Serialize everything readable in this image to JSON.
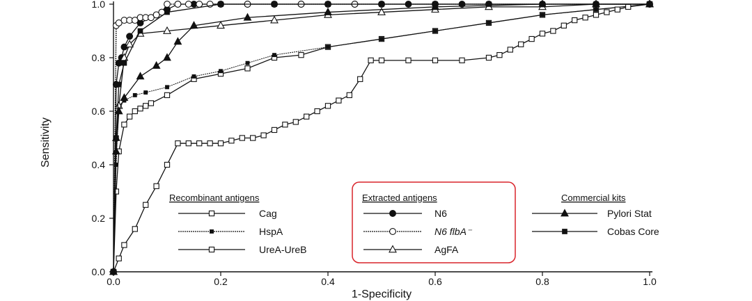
{
  "chart_data": {
    "type": "line",
    "title": "",
    "xlabel": "1-Specificity",
    "ylabel": "Sensitivity",
    "xlim": [
      0,
      1
    ],
    "ylim": [
      0,
      1
    ],
    "xticks": [
      "0.0",
      "0.2",
      "0.4",
      "0.6",
      "0.8",
      "1.0"
    ],
    "yticks": [
      "0.0",
      "0.2",
      "0.4",
      "0.6",
      "0.8",
      "1.0"
    ],
    "legend": {
      "groups": [
        {
          "title": "Recombinant antigens",
          "entries": [
            "Cag",
            "HspA",
            "UreA-UreB"
          ]
        },
        {
          "title": "Extracted antigens",
          "entries": [
            "N6",
            "N6 flbA⁻",
            "AgFA"
          ],
          "highlighted": true
        },
        {
          "title": "Commercial kits",
          "entries": [
            "Pylori Stat",
            "Cobas Core"
          ]
        }
      ]
    },
    "series": [
      {
        "name": "Cag",
        "marker": "open-square",
        "x": [
          0,
          0.005,
          0.01,
          0.02,
          0.03,
          0.04,
          0.05,
          0.06,
          0.07,
          0.1,
          0.15,
          0.2,
          0.25,
          0.3,
          0.35,
          0.4,
          0.5,
          0.6,
          0.7,
          0.8,
          0.9,
          1.0
        ],
        "y": [
          0,
          0.3,
          0.45,
          0.55,
          0.58,
          0.6,
          0.61,
          0.62,
          0.63,
          0.66,
          0.72,
          0.74,
          0.76,
          0.8,
          0.81,
          0.84,
          0.87,
          0.9,
          0.93,
          0.96,
          0.98,
          1.0
        ]
      },
      {
        "name": "HspA",
        "marker": "small-filled-square",
        "x": [
          0,
          0.005,
          0.01,
          0.02,
          0.04,
          0.06,
          0.1,
          0.15,
          0.2,
          0.25,
          0.3,
          0.4,
          0.5,
          0.6,
          0.7,
          0.8,
          0.9,
          1.0
        ],
        "y": [
          0,
          0.4,
          0.62,
          0.64,
          0.66,
          0.67,
          0.69,
          0.73,
          0.75,
          0.78,
          0.81,
          0.84,
          0.87,
          0.9,
          0.93,
          0.96,
          0.98,
          1.0
        ]
      },
      {
        "name": "UreA-UreB",
        "marker": "open-square",
        "x": [
          0,
          0.01,
          0.02,
          0.04,
          0.06,
          0.08,
          0.1,
          0.12,
          0.14,
          0.16,
          0.18,
          0.2,
          0.22,
          0.24,
          0.26,
          0.28,
          0.3,
          0.32,
          0.34,
          0.36,
          0.38,
          0.4,
          0.42,
          0.44,
          0.46,
          0.48,
          0.5,
          0.55,
          0.6,
          0.65,
          0.7,
          0.72,
          0.74,
          0.76,
          0.78,
          0.8,
          0.82,
          0.84,
          0.86,
          0.88,
          0.9,
          0.92,
          0.94,
          0.96,
          1.0
        ],
        "y": [
          0,
          0.05,
          0.1,
          0.16,
          0.25,
          0.32,
          0.4,
          0.48,
          0.48,
          0.48,
          0.48,
          0.48,
          0.49,
          0.5,
          0.5,
          0.51,
          0.53,
          0.55,
          0.56,
          0.58,
          0.6,
          0.62,
          0.64,
          0.66,
          0.72,
          0.79,
          0.79,
          0.79,
          0.79,
          0.79,
          0.8,
          0.81,
          0.83,
          0.85,
          0.87,
          0.89,
          0.9,
          0.92,
          0.94,
          0.95,
          0.96,
          0.97,
          0.98,
          0.99,
          1.0
        ]
      },
      {
        "name": "N6",
        "marker": "filled-circle",
        "x": [
          0,
          0.005,
          0.01,
          0.015,
          0.02,
          0.03,
          0.05,
          0.08,
          0.1,
          0.12,
          0.15,
          0.2,
          0.25,
          0.3,
          0.35,
          0.4,
          0.45,
          0.5,
          0.55,
          0.6,
          0.65,
          0.7,
          0.8,
          0.9,
          1.0
        ],
        "y": [
          0,
          0.7,
          0.78,
          0.8,
          0.84,
          0.88,
          0.93,
          0.96,
          0.98,
          1.0,
          1.0,
          1.0,
          1.0,
          1.0,
          1.0,
          1.0,
          1.0,
          1.0,
          1.0,
          1.0,
          1.0,
          1.0,
          1.0,
          1.0,
          1.0
        ]
      },
      {
        "name": "N6 flbA⁻",
        "marker": "open-circle",
        "x": [
          0,
          0.005,
          0.01,
          0.02,
          0.03,
          0.04,
          0.05,
          0.06,
          0.07,
          0.08,
          0.09,
          0.1,
          0.12,
          0.14,
          0.16,
          0.18,
          0.2,
          0.25,
          0.3,
          0.35,
          0.4,
          0.45,
          0.5,
          0.6,
          0.7,
          0.8,
          0.9,
          1.0
        ],
        "y": [
          0,
          0.92,
          0.93,
          0.94,
          0.94,
          0.94,
          0.95,
          0.95,
          0.95,
          0.96,
          0.97,
          1.0,
          1.0,
          1.0,
          1.0,
          1.0,
          1.0,
          1.0,
          1.0,
          1.0,
          1.0,
          1.0,
          1.0,
          1.0,
          1.0,
          1.0,
          1.0,
          1.0
        ]
      },
      {
        "name": "AgFA",
        "marker": "open-triangle",
        "x": [
          0,
          0.005,
          0.01,
          0.02,
          0.03,
          0.05,
          0.1,
          0.2,
          0.3,
          0.4,
          0.5,
          0.6,
          0.7,
          0.8,
          0.9,
          1.0
        ],
        "y": [
          0,
          0.5,
          0.62,
          0.8,
          0.85,
          0.89,
          0.9,
          0.92,
          0.94,
          0.96,
          0.97,
          0.98,
          0.99,
          0.99,
          1.0,
          1.0
        ]
      },
      {
        "name": "Pylori Stat",
        "marker": "filled-triangle",
        "x": [
          0,
          0.005,
          0.01,
          0.02,
          0.05,
          0.08,
          0.1,
          0.12,
          0.15,
          0.25,
          0.4,
          0.6,
          0.8,
          1.0
        ],
        "y": [
          0,
          0.45,
          0.6,
          0.65,
          0.73,
          0.77,
          0.8,
          0.86,
          0.92,
          0.95,
          0.97,
          0.99,
          1.0,
          1.0
        ]
      },
      {
        "name": "Cobas Core",
        "marker": "filled-square",
        "x": [
          0,
          0.005,
          0.01,
          0.02,
          0.05,
          0.1,
          0.2,
          0.3,
          0.4,
          0.5,
          0.6,
          0.7,
          0.8,
          0.9,
          1.0
        ],
        "y": [
          0,
          0.5,
          0.7,
          0.78,
          0.9,
          0.97,
          1.0,
          1.0,
          1.0,
          1.0,
          1.0,
          1.0,
          1.0,
          1.0,
          1.0
        ]
      }
    ]
  }
}
